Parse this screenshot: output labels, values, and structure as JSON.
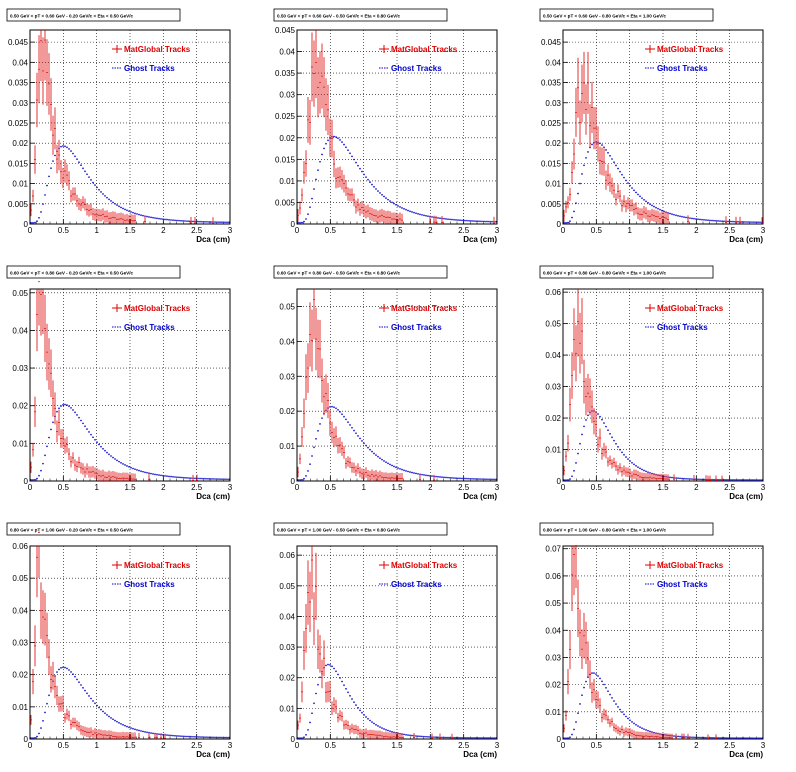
{
  "legend_labels": {
    "matglobal": "MatGlobal Tracks",
    "ghost": "Ghost Tracks"
  },
  "colors": {
    "matglobal": "#dd0000",
    "ghost": "#0000cc"
  },
  "chart_data": [
    {
      "type": "scatter",
      "title": "0.50 GeV < pT < 0.60 GeV -  0.20 GeV/c < Eta < 0.50 GeV/c",
      "xlabel": "Dca (cm)",
      "ylabel": "",
      "xlim": [
        0,
        3
      ],
      "ylim": [
        0,
        0.048
      ],
      "x_ticks": [
        "0",
        "0.5",
        "1",
        "1.5",
        "2",
        "2.5",
        "3"
      ],
      "y_ticks": [
        "0",
        "0.005",
        "0.01",
        "0.015",
        "0.02",
        "0.025",
        "0.03",
        "0.035",
        "0.04",
        "0.045"
      ],
      "grid": true,
      "legend_position": "top-right",
      "series": [
        {
          "name": "MatGlobal Tracks",
          "peak_x": 0.18,
          "peak_y": 0.042,
          "width": 0.22,
          "tail_y": 0.004
        },
        {
          "name": "Ghost Tracks",
          "peak_x": 0.5,
          "peak_y": 0.019,
          "width": 0.28,
          "tail_y": 0.0003
        }
      ]
    },
    {
      "type": "scatter",
      "title": "0.50 GeV < pT < 0.60 GeV -  0.50 GeV/c < Eta < 0.80 GeV/c",
      "xlabel": "Dca (cm)",
      "ylabel": "",
      "xlim": [
        0,
        3
      ],
      "ylim": [
        0,
        0.045
      ],
      "x_ticks": [
        "0",
        "0.5",
        "1",
        "1.5",
        "2",
        "2.5",
        "3"
      ],
      "y_ticks": [
        "0",
        "0.005",
        "0.01",
        "0.015",
        "0.02",
        "0.025",
        "0.03",
        "0.035",
        "0.04",
        "0.045"
      ],
      "grid": true,
      "legend_position": "top-right",
      "series": [
        {
          "name": "MatGlobal Tracks",
          "peak_x": 0.3,
          "peak_y": 0.038,
          "width": 0.22,
          "tail_y": 0.004
        },
        {
          "name": "Ghost Tracks",
          "peak_x": 0.55,
          "peak_y": 0.02,
          "width": 0.28,
          "tail_y": 0.0003
        }
      ]
    },
    {
      "type": "scatter",
      "title": "0.50 GeV < pT < 0.60 GeV -  0.80 GeV/c < Eta < 1.00 GeV/c",
      "xlabel": "Dca (cm)",
      "ylabel": "",
      "xlim": [
        0,
        3
      ],
      "ylim": [
        0,
        0.048
      ],
      "x_ticks": [
        "0",
        "0.5",
        "1",
        "1.5",
        "2",
        "2.5",
        "3"
      ],
      "y_ticks": [
        "0",
        "0.005",
        "0.01",
        "0.015",
        "0.02",
        "0.025",
        "0.03",
        "0.035",
        "0.04",
        "0.045"
      ],
      "grid": true,
      "legend_position": "top-right",
      "series": [
        {
          "name": "MatGlobal Tracks",
          "peak_x": 0.3,
          "peak_y": 0.033,
          "width": 0.25,
          "tail_y": 0.005
        },
        {
          "name": "Ghost Tracks",
          "peak_x": 0.5,
          "peak_y": 0.02,
          "width": 0.28,
          "tail_y": 0.0003
        }
      ]
    },
    {
      "type": "scatter",
      "title": "0.60 GeV < pT < 0.80 GeV -  0.20 GeV/c < Eta < 0.50 GeV/c",
      "xlabel": "Dca (cm)",
      "ylabel": "",
      "xlim": [
        0,
        3
      ],
      "ylim": [
        0,
        0.051
      ],
      "x_ticks": [
        "0",
        "0.5",
        "1",
        "1.5",
        "2",
        "2.5",
        "3"
      ],
      "y_ticks": [
        "0",
        "0.01",
        "0.02",
        "0.03",
        "0.04",
        "0.05"
      ],
      "grid": true,
      "legend_position": "top-right",
      "series": [
        {
          "name": "MatGlobal Tracks",
          "peak_x": 0.15,
          "peak_y": 0.047,
          "width": 0.2,
          "tail_y": 0.003
        },
        {
          "name": "Ghost Tracks",
          "peak_x": 0.52,
          "peak_y": 0.02,
          "width": 0.28,
          "tail_y": 0.0003
        }
      ]
    },
    {
      "type": "scatter",
      "title": "0.60 GeV < pT < 0.80 GeV -  0.50 GeV/c < Eta < 0.80 GeV/c",
      "xlabel": "Dca (cm)",
      "ylabel": "",
      "xlim": [
        0,
        3
      ],
      "ylim": [
        0,
        0.055
      ],
      "x_ticks": [
        "0",
        "0.5",
        "1",
        "1.5",
        "2",
        "2.5",
        "3"
      ],
      "y_ticks": [
        "0",
        "0.01",
        "0.02",
        "0.03",
        "0.04",
        "0.05"
      ],
      "grid": true,
      "legend_position": "top-right",
      "series": [
        {
          "name": "MatGlobal Tracks",
          "peak_x": 0.25,
          "peak_y": 0.048,
          "width": 0.2,
          "tail_y": 0.003
        },
        {
          "name": "Ghost Tracks",
          "peak_x": 0.52,
          "peak_y": 0.021,
          "width": 0.28,
          "tail_y": 0.0003
        }
      ]
    },
    {
      "type": "scatter",
      "title": "0.60 GeV < pT < 0.80 GeV -  0.80 GeV/c < Eta < 1.00 GeV/c",
      "xlabel": "Dca (cm)",
      "ylabel": "",
      "xlim": [
        0,
        3
      ],
      "ylim": [
        0,
        0.061
      ],
      "x_ticks": [
        "0",
        "0.5",
        "1",
        "1.5",
        "2",
        "2.5",
        "3"
      ],
      "y_ticks": [
        "0",
        "0.01",
        "0.02",
        "0.03",
        "0.04",
        "0.05",
        "0.06"
      ],
      "grid": true,
      "legend_position": "top-right",
      "series": [
        {
          "name": "MatGlobal Tracks",
          "peak_x": 0.22,
          "peak_y": 0.052,
          "width": 0.2,
          "tail_y": 0.003
        },
        {
          "name": "Ghost Tracks",
          "peak_x": 0.45,
          "peak_y": 0.022,
          "width": 0.25,
          "tail_y": 0.0003
        }
      ]
    },
    {
      "type": "scatter",
      "title": "0.80 GeV < pT < 1.00 GeV -  0.20 GeV/c < Eta < 0.50 GeV/c",
      "xlabel": "Dca (cm)",
      "ylabel": "",
      "xlim": [
        0,
        3
      ],
      "ylim": [
        0,
        0.06
      ],
      "x_ticks": [
        "0",
        "0.5",
        "1",
        "1.5",
        "2",
        "2.5",
        "3"
      ],
      "y_ticks": [
        "0",
        "0.01",
        "0.02",
        "0.03",
        "0.04",
        "0.05",
        "0.06"
      ],
      "grid": true,
      "legend_position": "top-right",
      "series": [
        {
          "name": "MatGlobal Tracks",
          "peak_x": 0.13,
          "peak_y": 0.055,
          "width": 0.18,
          "tail_y": 0.003
        },
        {
          "name": "Ghost Tracks",
          "peak_x": 0.5,
          "peak_y": 0.022,
          "width": 0.28,
          "tail_y": 0.0003
        }
      ]
    },
    {
      "type": "scatter",
      "title": "0.80 GeV < pT < 1.00 GeV -  0.50 GeV/c < Eta < 0.80 GeV/c",
      "xlabel": "Dca (cm)",
      "ylabel": "",
      "xlim": [
        0,
        3
      ],
      "ylim": [
        0,
        0.063
      ],
      "x_ticks": [
        "0",
        "0.5",
        "1",
        "1.5",
        "2",
        "2.5",
        "3"
      ],
      "y_ticks": [
        "0",
        "0.01",
        "0.02",
        "0.03",
        "0.04",
        "0.05",
        "0.06"
      ],
      "grid": true,
      "legend_position": "top-right",
      "series": [
        {
          "name": "MatGlobal Tracks",
          "peak_x": 0.22,
          "peak_y": 0.055,
          "width": 0.18,
          "tail_y": 0.003
        },
        {
          "name": "Ghost Tracks",
          "peak_x": 0.47,
          "peak_y": 0.024,
          "width": 0.25,
          "tail_y": 0.0003
        }
      ]
    },
    {
      "type": "scatter",
      "title": "0.80 GeV < pT < 1.00 GeV -  0.80 GeV/c < Eta < 1.00 GeV/c",
      "xlabel": "Dca (cm)",
      "ylabel": "",
      "xlim": [
        0,
        3
      ],
      "ylim": [
        0,
        0.071
      ],
      "x_ticks": [
        "0",
        "0.5",
        "1",
        "1.5",
        "2",
        "2.5",
        "3"
      ],
      "y_ticks": [
        "0",
        "0.01",
        "0.02",
        "0.03",
        "0.04",
        "0.05",
        "0.06",
        "0.07"
      ],
      "grid": true,
      "legend_position": "top-right",
      "series": [
        {
          "name": "MatGlobal Tracks",
          "peak_x": 0.18,
          "peak_y": 0.06,
          "width": 0.2,
          "tail_y": 0.003
        },
        {
          "name": "Ghost Tracks",
          "peak_x": 0.45,
          "peak_y": 0.024,
          "width": 0.25,
          "tail_y": 0.0003
        }
      ]
    }
  ]
}
